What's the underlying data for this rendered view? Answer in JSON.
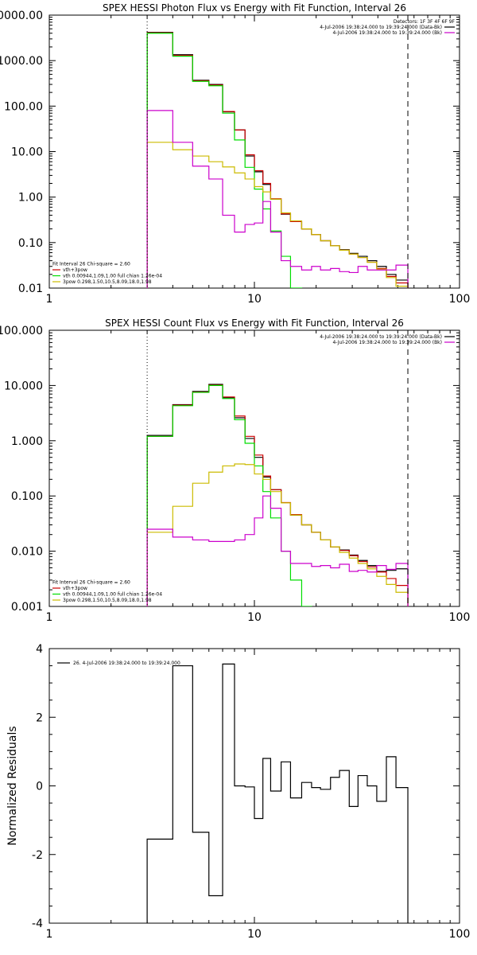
{
  "colors": {
    "black": "#000000",
    "red": "#cc0000",
    "green": "#00dd00",
    "yellow": "#ccbb00",
    "magenta": "#cc00cc"
  },
  "chart_data": [
    {
      "type": "line",
      "title": "SPEX HESSI Photon Flux vs Energy with Fit Function, Interval 26",
      "xlabel": "",
      "ylabel": "",
      "xscale": "log",
      "yscale": "log",
      "xlim": [
        1,
        100
      ],
      "ylim": [
        0.01,
        10000
      ],
      "xticks": [
        1,
        10,
        100
      ],
      "xtick_labels": [
        "1",
        "10",
        "100"
      ],
      "yticks": [
        0.01,
        0.1,
        1,
        10,
        100,
        1000,
        10000
      ],
      "ytick_labels": [
        "0.01",
        "0.10",
        "1.00",
        "10.00",
        "100.00",
        "1000.00",
        "10000.00"
      ],
      "vlines": [
        {
          "x": 3.0,
          "style": "dotted"
        },
        {
          "x": 56.0,
          "style": "dashed"
        }
      ],
      "edges": [
        3.0,
        4.0,
        5.0,
        6.0,
        7.0,
        8.0,
        9.0,
        10.0,
        11.0,
        12.0,
        13.5,
        15.0,
        17.0,
        19.0,
        21.0,
        23.5,
        26.0,
        29.0,
        32.0,
        35.5,
        39.5,
        44.0,
        49.0,
        56.0
      ],
      "series": [
        {
          "name": "",
          "color_key": "black",
          "values": [
            4200,
            1350,
            370,
            300,
            75,
            30,
            8,
            3.6,
            1.9,
            0.9,
            0.42,
            0.29,
            0.2,
            0.15,
            0.11,
            0.085,
            0.07,
            0.058,
            0.05,
            0.04,
            0.03,
            0.02,
            0.015
          ]
        },
        {
          "name": "",
          "color_key": "red",
          "values": [
            4100,
            1300,
            360,
            290,
            76,
            30,
            8.5,
            3.8,
            2.0,
            0.92,
            0.43,
            0.29,
            0.2,
            0.15,
            0.11,
            0.085,
            0.068,
            0.056,
            0.047,
            0.037,
            0.027,
            0.018,
            0.013
          ]
        },
        {
          "name": "",
          "color_key": "green",
          "values": [
            4000,
            1250,
            350,
            280,
            70,
            18,
            4.5,
            1.5,
            0.55,
            0.18,
            0.05,
            0.01
          ]
        },
        {
          "name": "",
          "color_key": "yellow",
          "values": [
            16,
            11,
            8,
            6,
            4.6,
            3.4,
            2.5,
            1.7,
            1.3,
            0.9,
            0.45,
            0.3,
            0.2,
            0.15,
            0.11,
            0.085,
            0.068,
            0.056,
            0.047,
            0.037,
            0.026,
            0.017,
            0.011
          ]
        },
        {
          "name": "",
          "color_key": "magenta",
          "values": [
            80,
            16,
            4.8,
            2.5,
            0.4,
            0.17,
            0.25,
            0.27,
            0.8,
            0.17,
            0.04,
            0.03,
            0.025,
            0.03,
            0.025,
            0.027,
            0.023,
            0.022,
            0.03,
            0.025,
            0.025,
            0.025,
            0.032
          ]
        }
      ],
      "legend_top_right": [
        {
          "text": "Detectors: 1F 3F 4F 6F 9F",
          "color_key": ""
        },
        {
          "text": "4-Jul-2006 19:38:24.000 to 19:39:24.000 (Data-Bk)",
          "color_key": "black"
        },
        {
          "text": "4-Jul-2006 19:38:24.000 to 19:39:24.000 (Bk)",
          "color_key": "magenta"
        }
      ],
      "legend_bottom_left": [
        {
          "text": "Fit Interval 26   Chi-square = 2.60",
          "color_key": ""
        },
        {
          "text": "vth+3pow",
          "color_key": "red"
        },
        {
          "text": "vth 0.00944,1.09,1.00  full chian 1.26e-04",
          "color_key": "green"
        },
        {
          "text": "3pow 0.298,1.50,10.5,8.09,18.0,1.98",
          "color_key": "yellow"
        }
      ]
    },
    {
      "type": "line",
      "title": "SPEX HESSI Count Flux vs Energy with Fit Function, Interval 26",
      "xlabel": "",
      "ylabel": "",
      "xscale": "log",
      "yscale": "log",
      "xlim": [
        1,
        100
      ],
      "ylim": [
        0.001,
        100
      ],
      "xticks": [
        1,
        10,
        100
      ],
      "xtick_labels": [
        "1",
        "10",
        "100"
      ],
      "yticks": [
        0.001,
        0.01,
        0.1,
        1,
        10,
        100
      ],
      "ytick_labels": [
        "0.001",
        "0.010",
        "0.100",
        "1.000",
        "10.000",
        "100.000"
      ],
      "vlines": [
        {
          "x": 3.0,
          "style": "dotted"
        },
        {
          "x": 56.0,
          "style": "dashed"
        }
      ],
      "edges": [
        3.0,
        4.0,
        5.0,
        6.0,
        7.0,
        8.0,
        9.0,
        10.0,
        11.0,
        12.0,
        13.5,
        15.0,
        17.0,
        19.0,
        21.0,
        23.5,
        26.0,
        29.0,
        32.0,
        35.5,
        39.5,
        44.0,
        49.0,
        56.0
      ],
      "series": [
        {
          "name": "",
          "color_key": "black",
          "values": [
            1.25,
            4.5,
            7.8,
            10.5,
            6.0,
            2.6,
            1.1,
            0.5,
            0.22,
            0.13,
            0.075,
            0.045,
            0.03,
            0.022,
            0.016,
            0.012,
            0.0105,
            0.0085,
            0.0068,
            0.0055,
            0.0043,
            0.0045,
            0.0048
          ]
        },
        {
          "name": "",
          "color_key": "red",
          "values": [
            1.2,
            4.4,
            7.6,
            10.2,
            6.2,
            2.8,
            1.2,
            0.55,
            0.23,
            0.13,
            0.076,
            0.046,
            0.03,
            0.022,
            0.016,
            0.012,
            0.0103,
            0.0083,
            0.0065,
            0.0052,
            0.0042,
            0.0032,
            0.0024
          ]
        },
        {
          "name": "",
          "color_key": "green",
          "values": [
            1.2,
            4.3,
            7.5,
            10.0,
            5.8,
            2.4,
            0.9,
            0.35,
            0.12,
            0.04,
            0.01,
            0.003,
            0.001
          ]
        },
        {
          "name": "",
          "color_key": "yellow",
          "values": [
            0.022,
            0.065,
            0.17,
            0.27,
            0.35,
            0.38,
            0.37,
            0.25,
            0.2,
            0.12,
            0.075,
            0.045,
            0.03,
            0.022,
            0.016,
            0.012,
            0.0095,
            0.0075,
            0.006,
            0.0048,
            0.0035,
            0.0025,
            0.0018
          ]
        },
        {
          "name": "",
          "color_key": "magenta",
          "values": [
            0.025,
            0.018,
            0.016,
            0.015,
            0.015,
            0.016,
            0.02,
            0.04,
            0.1,
            0.06,
            0.01,
            0.006,
            0.006,
            0.0053,
            0.0055,
            0.005,
            0.0058,
            0.0043,
            0.0045,
            0.0042,
            0.0055,
            0.0047,
            0.006
          ]
        }
      ],
      "legend_top_right": [
        {
          "text": "4-Jul-2006 19:38:24.000 to 19:39:24.000 (Data-Bk)",
          "color_key": "black"
        },
        {
          "text": "4-Jul-2006 19:38:24.000 to 19:39:24.000 (Bk)",
          "color_key": "magenta"
        }
      ],
      "legend_bottom_left": [
        {
          "text": "Fit Interval 26   Chi-square = 2.60",
          "color_key": ""
        },
        {
          "text": "vth+3pow",
          "color_key": "red"
        },
        {
          "text": "vth 0.00944,1.09,1.00  full chian 1.26e-04",
          "color_key": "green"
        },
        {
          "text": "3pow 0.298,1.50,10.5,8.09,18.0,1.98",
          "color_key": "yellow"
        }
      ]
    },
    {
      "type": "line",
      "title": "",
      "xlabel": "",
      "ylabel": "Normalized Residuals",
      "xscale": "log",
      "yscale": "linear",
      "xlim": [
        1,
        100
      ],
      "ylim": [
        -4,
        4
      ],
      "xticks": [
        1,
        10,
        100
      ],
      "xtick_labels": [
        "1",
        "10",
        "100"
      ],
      "yticks": [
        -4,
        -2,
        0,
        2,
        4
      ],
      "ytick_labels": [
        "-4",
        "-2",
        "0",
        "2",
        "4"
      ],
      "vlines": [],
      "edges": [
        3.0,
        4.0,
        5.0,
        6.0,
        7.0,
        8.0,
        9.0,
        10.0,
        11.0,
        12.0,
        13.5,
        15.0,
        17.0,
        19.0,
        21.0,
        23.5,
        26.0,
        29.0,
        32.0,
        35.5,
        39.5,
        44.0,
        49.0,
        56.0
      ],
      "series": [
        {
          "name": "",
          "color_key": "black",
          "values": [
            -1.55,
            3.5,
            -1.35,
            -3.2,
            3.55,
            0.0,
            -0.03,
            -0.95,
            0.8,
            -0.15,
            0.7,
            -0.35,
            0.1,
            -0.05,
            -0.1,
            0.25,
            0.45,
            -0.6,
            0.3,
            0.0,
            -0.45,
            0.85,
            -0.05
          ]
        }
      ],
      "legend_top_left": [
        {
          "text": "26.  4-Jul-2006 19:38:24.000 to 19:39:24.000",
          "color_key": "black"
        }
      ]
    }
  ]
}
